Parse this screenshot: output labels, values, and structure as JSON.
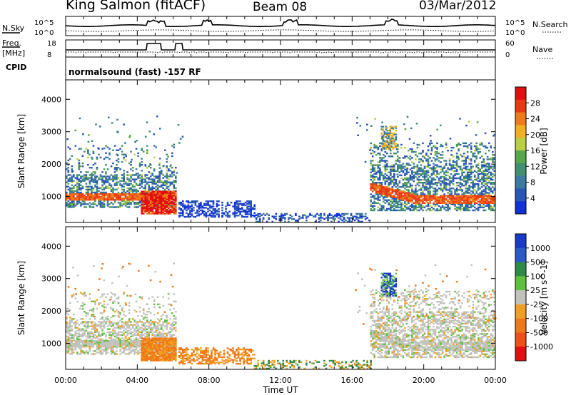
{
  "header": {
    "station": "King Salmon (fitACF)",
    "beam": "Beam 08",
    "date": "03/Mar/2012"
  },
  "top_panels": {
    "nsky_label": "N.Sky",
    "nsky_ticks": [
      "10^5",
      "10^0"
    ],
    "nsearch_label": "N.Search",
    "nsearch_ticks": [
      "10^5",
      "10^0"
    ],
    "freq_label_1": "Freq.",
    "freq_label_2": "[MHz]",
    "freq_ticks": [
      "18",
      "8"
    ],
    "nave_label": "Nave",
    "nave_ticks": [
      "60",
      "0"
    ],
    "cpid_label": "CPID",
    "cpid_text": "normalsound (fast) -157 RF"
  },
  "colors": {
    "power_scale": [
      "#1230d8",
      "#2a55b8",
      "#3a7aa0",
      "#3f8f70",
      "#57a64a",
      "#b8d040",
      "#f0b020",
      "#f07a18",
      "#e83a14",
      "#e01010"
    ],
    "velocity_scale": [
      "#1a3acc",
      "#2a5ac8",
      "#2f8a48",
      "#5fc040",
      "#c2c2bc",
      "#f0a020",
      "#f07818",
      "#f05018",
      "#e01010"
    ]
  },
  "chart_data": [
    {
      "type": "heatmap",
      "name": "power",
      "ylabel": "Slant Range [km]",
      "xlabel": "Time UT",
      "xlim": [
        "00:00",
        "24:00"
      ],
      "ylim": [
        200,
        4600
      ],
      "yticks": [
        "1000",
        "2000",
        "3000",
        "4000"
      ],
      "xticks": [
        "00:00",
        "04:00",
        "08:00",
        "12:00",
        "16:00",
        "20:00",
        "00:00"
      ],
      "colorbar": {
        "label": "Power [dB]",
        "ticks": [
          "28",
          "24",
          "20",
          "16",
          "12",
          "8",
          "4"
        ],
        "range": [
          0,
          30
        ]
      }
    },
    {
      "type": "heatmap",
      "name": "velocity",
      "ylabel": "Slant Range [km]",
      "xlabel": "Time UT",
      "xlim": [
        "00:00",
        "24:00"
      ],
      "ylim": [
        200,
        4600
      ],
      "yticks": [
        "1000",
        "2000",
        "3000",
        "4000"
      ],
      "xticks": [
        "00:00",
        "04:00",
        "08:00",
        "12:00",
        "16:00",
        "20:00",
        "00:00"
      ],
      "colorbar": {
        "label": "Velocity [m s^-1]",
        "ticks": [
          "1000",
          "500",
          "100",
          "25",
          "-25",
          "-100",
          "-500",
          "-1000"
        ]
      }
    }
  ]
}
